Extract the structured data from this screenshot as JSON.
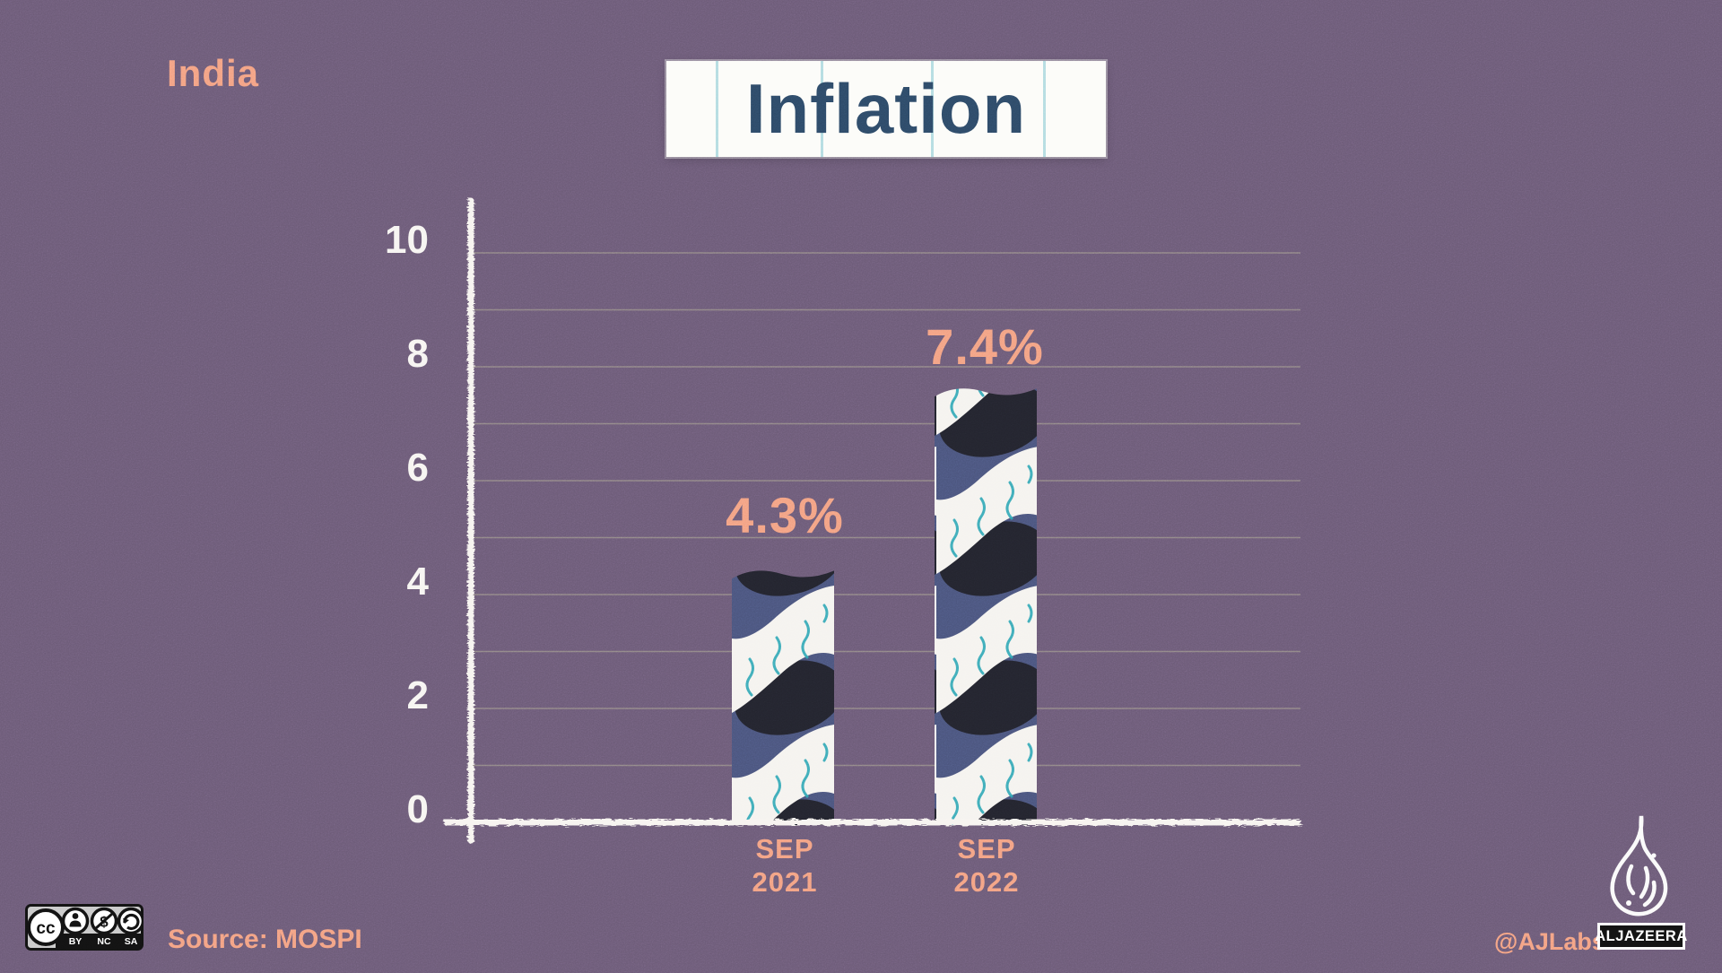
{
  "header": {
    "country_label": "India",
    "title": "Inflation"
  },
  "footer": {
    "source": "Source: MOSPI",
    "credit_handle": "@AJLabs",
    "brand_wordmark": "ALJAZEERA",
    "license": {
      "cc_glyph": "cc",
      "parts": [
        "BY",
        "NC",
        "SA"
      ]
    }
  },
  "colors": {
    "background": "#6b5a76",
    "accent_salmon": "#f3a081",
    "title_navy": "#2d4966",
    "axis_white": "#f7f4f0",
    "bar_navy": "#4a547c",
    "bar_dark_oval": "#23242e",
    "bar_teal_squiggle": "#2ba3b3",
    "gridline": "#bbb898",
    "notebook_line_blue": "#a6d6dd"
  },
  "chart_data": {
    "type": "bar",
    "title": "Inflation",
    "region": "India",
    "categories": [
      [
        "SEP",
        "2021"
      ],
      [
        "SEP",
        "2022"
      ]
    ],
    "values": [
      4.3,
      7.4
    ],
    "value_labels": [
      "4.3%",
      "7.4%"
    ],
    "yticks": [
      0,
      2,
      4,
      6,
      8,
      10
    ],
    "ylim": [
      0,
      10
    ],
    "grid": "horizontal, every 1 unit, faint",
    "legend": "none",
    "source": "MOSPI"
  }
}
